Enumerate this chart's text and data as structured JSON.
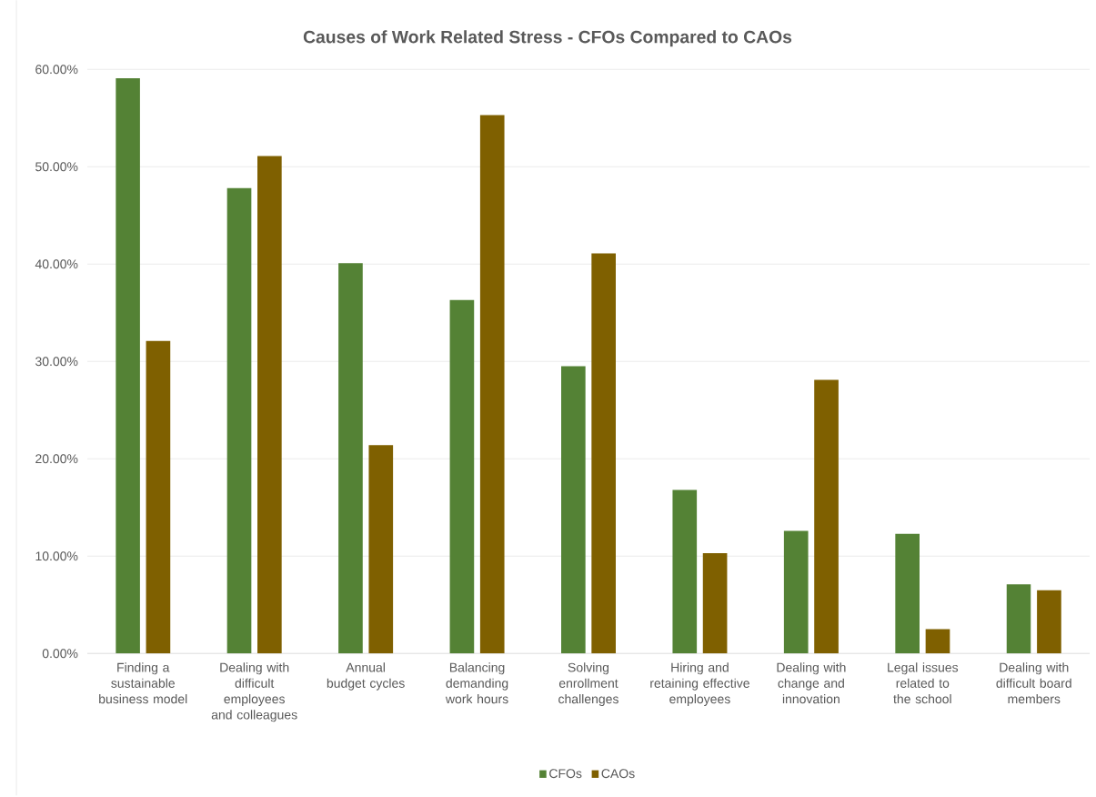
{
  "chart_data": {
    "type": "bar",
    "title": "Causes of Work Related Stress - CFOs Compared to CAOs",
    "categories": [
      "Finding a sustainable business model",
      "Dealing with difficult employees and colleagues",
      "Annual budget cycles",
      "Balancing demanding work hours",
      "Solving enrollment challenges",
      "Hiring and retaining effective employees",
      "Dealing with change and innovation",
      "Legal issues related to the school",
      "Dealing with difficult board members"
    ],
    "series": [
      {
        "name": "CFOs",
        "color": "#548235",
        "values": [
          59.1,
          47.8,
          40.1,
          36.3,
          29.5,
          16.8,
          12.6,
          12.3,
          7.1
        ]
      },
      {
        "name": "CAOs",
        "color": "#7f6000",
        "values": [
          32.1,
          51.1,
          21.4,
          55.3,
          41.1,
          10.3,
          28.1,
          2.5,
          6.5
        ]
      }
    ],
    "ylim": [
      0,
      60
    ],
    "yticks": [
      {
        "value": 0,
        "label": "0.00%"
      },
      {
        "value": 10,
        "label": "10.00%"
      },
      {
        "value": 20,
        "label": "20.00%"
      },
      {
        "value": 30,
        "label": "30.00%"
      },
      {
        "value": 40,
        "label": "40.00%"
      },
      {
        "value": 50,
        "label": "50.00%"
      },
      {
        "value": 60,
        "label": "60.00%"
      }
    ],
    "grid": "y",
    "legend": "bottom"
  }
}
